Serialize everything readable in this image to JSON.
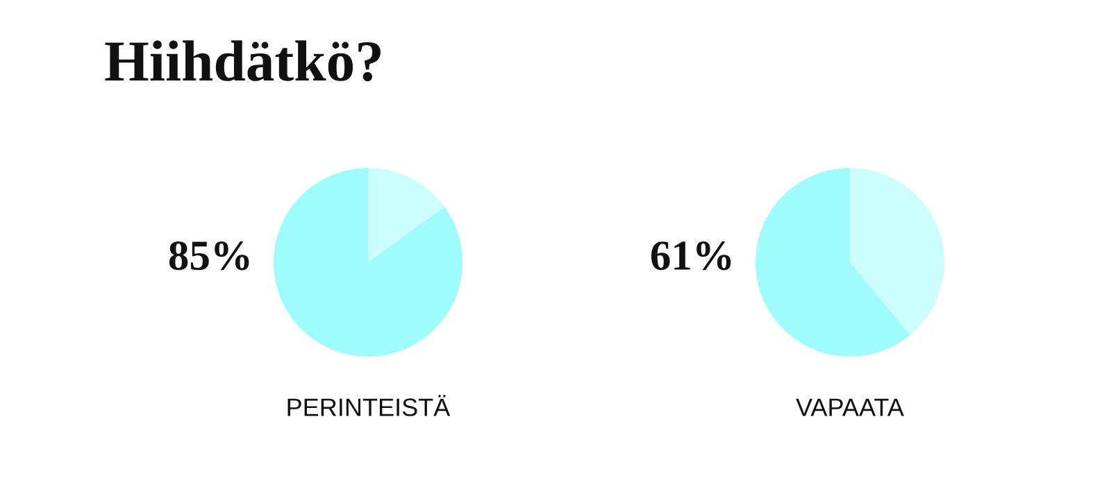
{
  "chart_data": [
    {
      "type": "pie",
      "title": "Hiihdätkö?",
      "xlabel": "PERINTEISTÄ",
      "categories": [
        null,
        null
      ],
      "values": [
        85,
        15
      ],
      "colors": [
        "#9efcfc",
        "#cbfdfd"
      ],
      "value_labels": [
        "85%",
        null
      ]
    },
    {
      "type": "pie",
      "xlabel": "VAPAATA",
      "categories": [
        null,
        null
      ],
      "values": [
        61,
        39
      ],
      "colors": [
        "#9efcfc",
        "#cbfdfd"
      ],
      "value_labels": [
        "61%",
        null
      ]
    }
  ]
}
